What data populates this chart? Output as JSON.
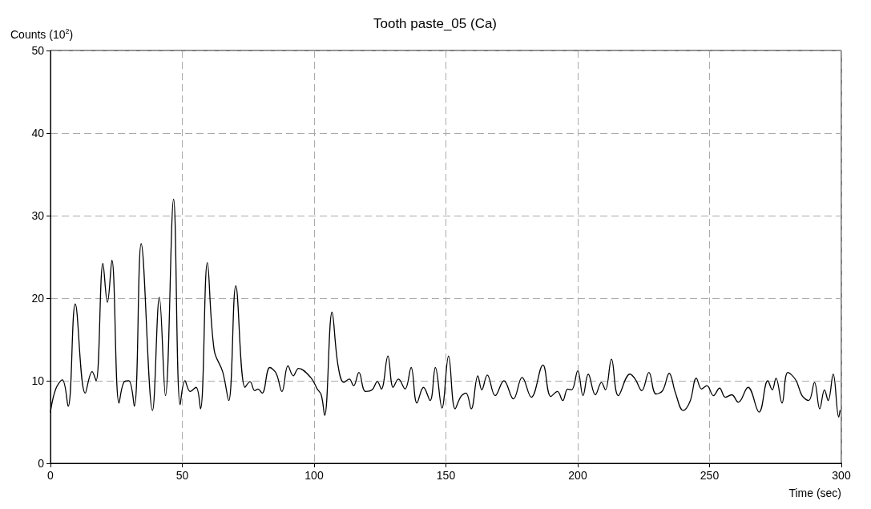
{
  "chart_data": {
    "type": "line",
    "title": "Tooth paste_05 (Ca)",
    "xlabel": "Time (sec)",
    "ylabel": "Counts (10$^{2}$)",
    "xlim": [
      0,
      300
    ],
    "xticks": [
      0,
      50,
      100,
      150,
      200,
      250,
      300
    ],
    "ylim": [
      0,
      50
    ],
    "yticks": [
      0,
      10,
      20,
      30,
      40,
      50
    ],
    "grid": true,
    "marker": "none",
    "line_style": "solid",
    "series": [
      {
        "color": "#000000",
        "x": [
          0,
          2,
          4.5,
          6.7,
          9.4,
          13.2,
          15.8,
          17.3,
          19.9,
          21.6,
          23.3,
          26,
          27.8,
          29.7,
          31.8,
          34.4,
          38.7,
          41.3,
          43.6,
          46.7,
          49.2,
          51,
          53,
          55.2,
          56.9,
          59.5,
          62.1,
          65.3,
          67.6,
          70.3,
          73.8,
          75.7,
          77.5,
          78.7,
          80.3,
          83.2,
          85.6,
          87.8,
          90.1,
          92.1,
          94.1,
          98.7,
          101.2,
          102.7,
          104,
          106.8,
          109.1,
          111.3,
          113.3,
          115,
          117,
          119.5,
          122,
          124,
          125.5,
          128,
          130,
          132,
          134.5,
          136.8,
          139,
          141.5,
          144,
          146,
          148.5,
          151,
          153.5,
          155.7,
          157.6,
          159.6,
          162.1,
          163.6,
          165.7,
          168.7,
          172,
          175.6,
          178.9,
          182.4,
          186.8,
          189.8,
          192.3,
          194.3,
          196.2,
          197.7,
          200,
          202,
          204,
          206.7,
          209,
          210.5,
          212.8,
          215.4,
          219.8,
          221.8,
          224.3,
          227,
          229.7,
          232.2,
          234.7,
          237.1,
          240,
          242.6,
          245,
          247,
          249,
          251.5,
          253.8,
          256,
          258.4,
          260.9,
          264.6,
          268.8,
          272.1,
          273.8,
          275.2,
          277.5,
          279.7,
          282.7,
          285.1,
          287.6,
          289.8,
          291.8,
          293.6,
          295,
          296.9,
          299,
          299.5
        ],
        "values": [
          6.2,
          9.0,
          10.1,
          6.9,
          19.3,
          8.5,
          11.1,
          10,
          24.2,
          19.5,
          24.6,
          7.3,
          9.8,
          10,
          6.9,
          26.6,
          6.4,
          20.1,
          8.2,
          32.0,
          7.1,
          10,
          8.7,
          9.2,
          6.6,
          24.3,
          13.7,
          11.1,
          7.6,
          21.5,
          9.2,
          9.9,
          8.8,
          9.0,
          8.5,
          11.6,
          10.9,
          8.7,
          11.8,
          10.6,
          11.5,
          10.4,
          9.0,
          8.3,
          5.8,
          18.3,
          11.8,
          9.8,
          10.2,
          9.4,
          11.0,
          8.7,
          8.9,
          9.9,
          9.0,
          13.0,
          9.2,
          10.2,
          9.0,
          11.6,
          7.3,
          9.2,
          7.6,
          11.6,
          6.7,
          13.0,
          6.6,
          8.1,
          8.5,
          6.6,
          10.6,
          8.9,
          10.7,
          8.2,
          10,
          7.8,
          10.4,
          8.0,
          11.9,
          8.1,
          8.7,
          7.6,
          9.0,
          8.9,
          11.2,
          8.2,
          10.8,
          8.3,
          9.8,
          8.9,
          12.6,
          8.2,
          10.8,
          10.2,
          8.8,
          11.0,
          8.4,
          8.8,
          10.9,
          8.5,
          6.4,
          7.5,
          10.3,
          9.0,
          9.4,
          8.2,
          9.1,
          8.0,
          8.3,
          7.4,
          9.2,
          6.2,
          10,
          8.9,
          10.3,
          7.3,
          11.0,
          10.1,
          8.2,
          7.6,
          9.8,
          6.6,
          8.9,
          7.6,
          10.8,
          5.6,
          6.4
        ]
      }
    ]
  }
}
